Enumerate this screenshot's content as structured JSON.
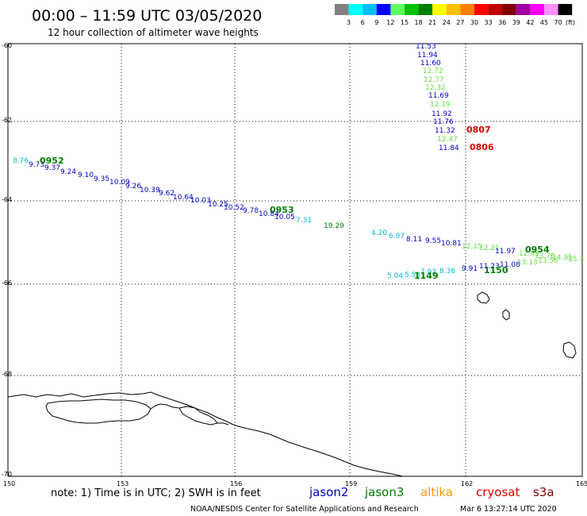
{
  "header": {
    "title": "00:00 – 11:59 UTC 03/05/2020",
    "subtitle": "12 hour collection of altimeter wave heights"
  },
  "colorbar": {
    "unit": "(ft)",
    "labels": [
      "3",
      "6",
      "9",
      "12",
      "15",
      "18",
      "21",
      "24",
      "27",
      "30",
      "33",
      "36",
      "39",
      "42",
      "45",
      "70"
    ],
    "colors": [
      "#808080",
      "#00ffff",
      "#00bfff",
      "#0000ff",
      "#60ff60",
      "#00c000",
      "#008000",
      "#ffff00",
      "#ffc000",
      "#ff8000",
      "#ff0000",
      "#c00000",
      "#800000",
      "#a000a0",
      "#ff00ff",
      "#ff90ff",
      "#000000"
    ]
  },
  "axes": {
    "lat_labels": [
      "-60",
      "-62",
      "-64",
      "-66",
      "-68",
      "-70"
    ],
    "lon_labels": [
      "150",
      "153",
      "156",
      "159",
      "162",
      "165"
    ]
  },
  "satellite_colors": {
    "jason2": "#0000cc",
    "jason3": "#008000",
    "altika": "#ff9900",
    "cryosat": "#dd0000",
    "s3a": "#880000",
    "cyan": "#00bcd4",
    "light_green": "#66dd44"
  },
  "tracks": [
    {
      "id": "track-0952",
      "color": "blue",
      "points": [
        {
          "v": "8.76",
          "c": "cyan"
        },
        {
          "v": "9.73",
          "c": "blue"
        },
        {
          "v": "9.37",
          "c": "blue"
        },
        {
          "v": "9.24",
          "c": "blue"
        },
        {
          "v": "9.10",
          "c": "blue"
        },
        {
          "v": "9.35",
          "c": "blue"
        },
        {
          "v": "10.09",
          "c": "blue"
        },
        {
          "v": "9.26",
          "c": "blue"
        },
        {
          "v": "10.39",
          "c": "blue"
        },
        {
          "v": "9.62",
          "c": "blue"
        },
        {
          "v": "10.64",
          "c": "blue"
        },
        {
          "v": "10.03",
          "c": "blue"
        },
        {
          "v": "10.25",
          "c": "blue"
        },
        {
          "v": "10.52",
          "c": "blue"
        },
        {
          "v": "9.78",
          "c": "blue"
        },
        {
          "v": "10.84",
          "c": "blue"
        },
        {
          "v": "10.05",
          "c": "blue"
        },
        {
          "v": "7.31",
          "c": "cyan"
        },
        {
          "v": "19.29",
          "c": "green"
        }
      ]
    },
    {
      "id": "track-0807",
      "points": [
        {
          "v": "11.53",
          "c": "blue"
        },
        {
          "v": "11.94",
          "c": "blue"
        },
        {
          "v": "11.60",
          "c": "blue"
        },
        {
          "v": "12.72",
          "c": "light_green"
        },
        {
          "v": "12.77",
          "c": "light_green"
        },
        {
          "v": "12.32",
          "c": "light_green"
        },
        {
          "v": "11.69",
          "c": "blue"
        },
        {
          "v": "12.19",
          "c": "light_green"
        },
        {
          "v": "11.92",
          "c": "blue"
        },
        {
          "v": "11.76",
          "c": "blue"
        },
        {
          "v": "11.32",
          "c": "blue"
        },
        {
          "v": "12.47",
          "c": "light_green"
        },
        {
          "v": "11.84",
          "c": "blue"
        }
      ]
    },
    {
      "id": "track-0954",
      "points": [
        {
          "v": "4.20",
          "c": "cyan"
        },
        {
          "v": "6.97",
          "c": "cyan"
        },
        {
          "v": "8.11",
          "c": "blue"
        },
        {
          "v": "9.55",
          "c": "blue"
        },
        {
          "v": "10.81",
          "c": "blue"
        },
        {
          "v": "12.15",
          "c": "light_green"
        },
        {
          "v": "12.21",
          "c": "light_green"
        },
        {
          "v": "11.97",
          "c": "blue"
        },
        {
          "v": "12.95",
          "c": "light_green"
        },
        {
          "v": "13.76",
          "c": "light_green"
        },
        {
          "v": "14.95",
          "c": "light_green"
        },
        {
          "v": "15.3",
          "c": "light_green"
        }
      ]
    },
    {
      "id": "track-1149",
      "points": [
        {
          "v": "5.04",
          "c": "cyan"
        },
        {
          "v": "5.53",
          "c": "cyan"
        },
        {
          "v": "7.92",
          "c": "cyan"
        },
        {
          "v": "8.36",
          "c": "cyan"
        },
        {
          "v": "9.91",
          "c": "blue"
        },
        {
          "v": "11.23",
          "c": "blue"
        },
        {
          "v": "11.08",
          "c": "blue"
        },
        {
          "v": "13.13",
          "c": "light_green"
        },
        {
          "v": "13.56",
          "c": "light_green"
        }
      ]
    }
  ],
  "time_labels": [
    {
      "t": "0952",
      "c": "jason3"
    },
    {
      "t": "0953",
      "c": "jason3"
    },
    {
      "t": "0807",
      "c": "cryosat"
    },
    {
      "t": "0806",
      "c": "cryosat"
    },
    {
      "t": "0954",
      "c": "jason3"
    },
    {
      "t": "1149",
      "c": "jason3"
    },
    {
      "t": "1150",
      "c": "jason3"
    }
  ],
  "footer": {
    "note": "note:  1) Time is in UTC;  2) SWH is in feet",
    "legend": [
      {
        "name": "jason2",
        "c": "jason2"
      },
      {
        "name": "jason3",
        "c": "jason3"
      },
      {
        "name": "altika",
        "c": "altika"
      },
      {
        "name": "cryosat",
        "c": "cryosat"
      },
      {
        "name": "s3a",
        "c": "s3a"
      }
    ],
    "credit": "NOAA/NESDIS Center for Satellite Applications and Research",
    "timestamp": "Mar  6 13:27:14 UTC 2020"
  }
}
